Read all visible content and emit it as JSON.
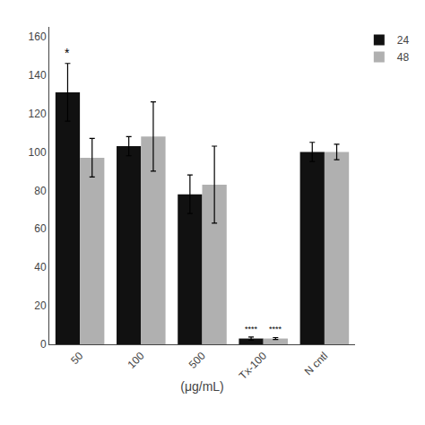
{
  "chart_data": {
    "type": "bar",
    "categories": [
      "50",
      "100",
      "500",
      "Tx-100",
      "N cntl"
    ],
    "series": [
      {
        "name": "24",
        "color": "#111111",
        "values": [
          131,
          103,
          78,
          3,
          100
        ],
        "errors": [
          15,
          5,
          10,
          0.8,
          5
        ]
      },
      {
        "name": "48",
        "color": "#b0b0b0",
        "values": [
          97,
          108,
          83,
          3,
          100
        ],
        "errors": [
          10,
          18,
          20,
          0.5,
          4
        ]
      }
    ],
    "xlabel": "(μg/mL)",
    "ylim": [
      0,
      165
    ],
    "yticks": [
      0,
      20,
      40,
      60,
      80,
      100,
      120,
      140,
      160
    ],
    "grid": false,
    "legend": "upper right",
    "annotations": [
      {
        "text": "*",
        "category": "50",
        "series": "24"
      },
      {
        "text": "****",
        "category": "Tx-100",
        "series": "24"
      },
      {
        "text": "****",
        "category": "Tx-100",
        "series": "48"
      }
    ]
  }
}
